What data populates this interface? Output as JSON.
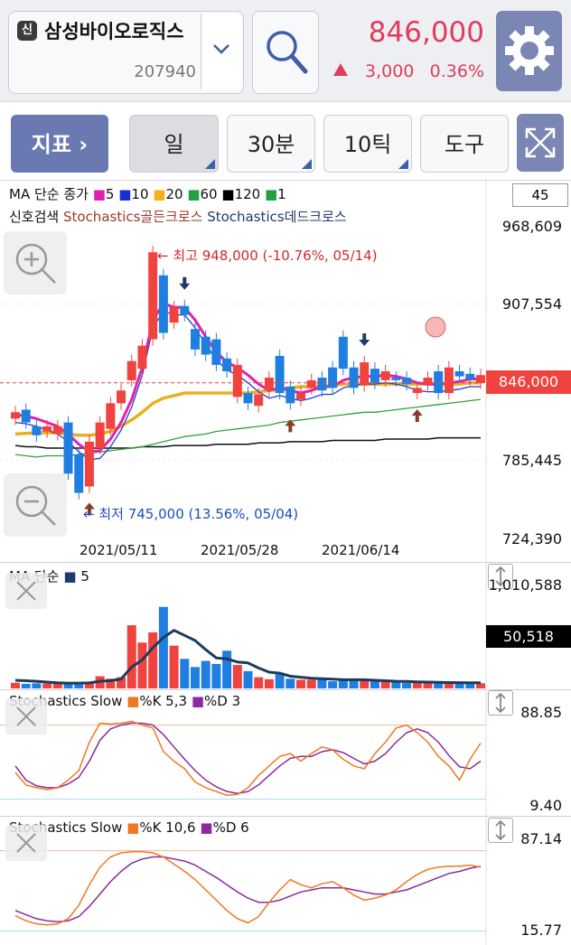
{
  "header": {
    "badge": "신",
    "stock_name": "삼성바이오로직스",
    "stock_code": "207940",
    "price": "846,000",
    "change": "3,000",
    "change_pct": "0.36%",
    "up_color": "#e03c5c"
  },
  "toolbar": {
    "indicator_label": "지표 ›",
    "period_day": "일",
    "period_30min": "30분",
    "period_10tick": "10틱",
    "tools": "도구"
  },
  "main_chart": {
    "ma_title": "MA 단순 종가",
    "ma_legend": [
      {
        "label": "5",
        "color": "#e020b0"
      },
      {
        "label": "10",
        "color": "#1a2fd0"
      },
      {
        "label": "20",
        "color": "#f0b418"
      },
      {
        "label": "60",
        "color": "#20a040"
      },
      {
        "label": "120",
        "color": "#000000"
      },
      {
        "label": "1",
        "color": "#20a040"
      }
    ],
    "signal_label": "신호검색",
    "signal_golden": "Stochastics골든크로스",
    "signal_dead": "Stochastics데드크로스",
    "period_box": "45",
    "y_labels": [
      "968,609",
      "907,554",
      "785,445",
      "724,390"
    ],
    "x_labels": [
      "2021/05/11",
      "2021/05/28",
      "2021/06/14"
    ],
    "current_price_tag": "846,000",
    "high_note": "← 최고 948,000 (-10.76%, 05/14)",
    "low_note": "← 최저 745,000 (13.56%, 05/04)"
  },
  "volume": {
    "title": "MA 단순",
    "ma_period": "5",
    "y_top": "1,010,588",
    "last_tag": "50,518"
  },
  "stoch1": {
    "title": "Stochastics Slow",
    "k": "%K 5,3",
    "d": "%D 3",
    "y_top": "88.85",
    "y_bottom": "9.40"
  },
  "stoch2": {
    "title": "Stochastics Slow",
    "k": "%K 10,6",
    "d": "%D 6",
    "y_top": "87.14",
    "y_bottom": "15.77"
  },
  "chart_data": {
    "type": "candlestick",
    "y_range": [
      724390,
      968609
    ],
    "high": 948000,
    "low": 745000,
    "last_close": 846000,
    "candles": [
      {
        "o": 823000,
        "c": 818000,
        "dir": "up"
      },
      {
        "o": 825000,
        "c": 815000,
        "dir": "down"
      },
      {
        "o": 812000,
        "c": 805000,
        "dir": "down"
      },
      {
        "o": 808000,
        "c": 812000,
        "dir": "up"
      },
      {
        "o": 806000,
        "c": 812000,
        "dir": "up"
      },
      {
        "o": 815000,
        "c": 775000,
        "dir": "down"
      },
      {
        "o": 790000,
        "c": 760000,
        "dir": "down"
      },
      {
        "o": 765000,
        "c": 800000,
        "dir": "up"
      },
      {
        "o": 795000,
        "c": 815000,
        "dir": "up"
      },
      {
        "o": 810000,
        "c": 830000,
        "dir": "up"
      },
      {
        "o": 830000,
        "c": 840000,
        "dir": "up"
      },
      {
        "o": 848000,
        "c": 863000,
        "dir": "up"
      },
      {
        "o": 857000,
        "c": 875000,
        "dir": "up"
      },
      {
        "o": 880000,
        "c": 948000,
        "dir": "up"
      },
      {
        "o": 930000,
        "c": 885000,
        "dir": "down"
      },
      {
        "o": 893000,
        "c": 905000,
        "dir": "up"
      },
      {
        "o": 906000,
        "c": 899000,
        "dir": "down"
      },
      {
        "o": 888000,
        "c": 872000,
        "dir": "down"
      },
      {
        "o": 882000,
        "c": 868000,
        "dir": "down"
      },
      {
        "o": 880000,
        "c": 860000,
        "dir": "down"
      },
      {
        "o": 865000,
        "c": 855000,
        "dir": "down"
      },
      {
        "o": 835000,
        "c": 860000,
        "dir": "up"
      },
      {
        "o": 838000,
        "c": 830000,
        "dir": "down"
      },
      {
        "o": 828000,
        "c": 837000,
        "dir": "up"
      },
      {
        "o": 840000,
        "c": 850000,
        "dir": "up"
      },
      {
        "o": 867000,
        "c": 838000,
        "dir": "down"
      },
      {
        "o": 843000,
        "c": 830000,
        "dir": "down"
      },
      {
        "o": 833000,
        "c": 838000,
        "dir": "up"
      },
      {
        "o": 842000,
        "c": 848000,
        "dir": "up"
      },
      {
        "o": 850000,
        "c": 840000,
        "dir": "down"
      },
      {
        "o": 858000,
        "c": 842000,
        "dir": "down"
      },
      {
        "o": 882000,
        "c": 857000,
        "dir": "down"
      },
      {
        "o": 858000,
        "c": 842000,
        "dir": "down"
      },
      {
        "o": 844000,
        "c": 862000,
        "dir": "up"
      },
      {
        "o": 857000,
        "c": 846000,
        "dir": "down"
      },
      {
        "o": 848000,
        "c": 855000,
        "dir": "up"
      },
      {
        "o": 850000,
        "c": 848000,
        "dir": "down"
      },
      {
        "o": 850000,
        "c": 845000,
        "dir": "down"
      },
      {
        "o": 838000,
        "c": 842000,
        "dir": "up"
      },
      {
        "o": 845000,
        "c": 850000,
        "dir": "up"
      },
      {
        "o": 855000,
        "c": 838000,
        "dir": "down"
      },
      {
        "o": 838000,
        "c": 858000,
        "dir": "up"
      },
      {
        "o": 855000,
        "c": 851000,
        "dir": "down"
      },
      {
        "o": 853000,
        "c": 849000,
        "dir": "down"
      },
      {
        "o": 852000,
        "c": 846000,
        "dir": "up"
      }
    ],
    "ma5": [
      821000,
      820000,
      818000,
      815000,
      812000,
      806000,
      798000,
      792000,
      793000,
      802000,
      815000,
      833000,
      858000,
      895000,
      908000,
      905000,
      905000,
      895000,
      882000,
      870000,
      862000,
      858000,
      852000,
      845000,
      840000,
      842000,
      840000,
      838000,
      840000,
      843000,
      843000,
      848000,
      850000,
      851000,
      851000,
      852000,
      851000,
      849000,
      846000,
      845000,
      845000,
      846000,
      847000,
      849000,
      849000
    ],
    "ma20": [
      806000,
      806500,
      807000,
      807000,
      807000,
      806000,
      805000,
      805000,
      806000,
      808000,
      812000,
      817000,
      823000,
      830000,
      834000,
      836000,
      838000,
      838000,
      838000,
      838000,
      838000,
      838000,
      838000,
      839000,
      840000,
      841000,
      842000,
      843000,
      843000,
      843000,
      844000,
      845000,
      845000,
      845000,
      845000,
      845000,
      845000,
      845000,
      845000,
      845000,
      845000,
      845000,
      845000,
      846000,
      846000
    ],
    "ma60": [
      790000,
      789000,
      788000,
      789000,
      789000,
      789000,
      790000,
      791000,
      792000,
      793000,
      794000,
      795000,
      796000,
      798000,
      800000,
      802000,
      804000,
      805000,
      806000,
      808000,
      809000,
      810000,
      811000,
      812000,
      813000,
      815000,
      816000,
      817000,
      818000,
      819000,
      820000,
      821000,
      822000,
      823000,
      823000,
      824000,
      825000,
      826000,
      827000,
      828000,
      829000,
      830000,
      831000,
      832000,
      833000
    ],
    "ma120": [
      797000,
      796000,
      796000,
      795000,
      795000,
      795000,
      795000,
      795000,
      795000,
      795000,
      795000,
      795000,
      796000,
      796000,
      796000,
      797000,
      797000,
      797000,
      797000,
      798000,
      798000,
      798000,
      798000,
      799000,
      799000,
      799000,
      800000,
      800000,
      800000,
      800000,
      801000,
      801000,
      801000,
      801000,
      801000,
      802000,
      802000,
      802000,
      802000,
      802000,
      803000,
      803000,
      803000,
      803000,
      803000
    ],
    "volume": [
      55000,
      45000,
      50000,
      48000,
      52000,
      47000,
      50000,
      58000,
      120000,
      95000,
      110000,
      620000,
      450000,
      550000,
      800000,
      420000,
      290000,
      210000,
      270000,
      240000,
      370000,
      230000,
      170000,
      110000,
      90000,
      140000,
      95000,
      85000,
      85000,
      100000,
      70000,
      90000,
      95000,
      85000,
      80000,
      75000,
      60000,
      55000,
      60000,
      75000,
      55000,
      60000,
      65000,
      60000,
      50518
    ],
    "volume_ma5": [
      80000,
      75000,
      70000,
      62000,
      56000,
      52000,
      52000,
      54000,
      70000,
      76000,
      92000,
      210000,
      280000,
      400000,
      500000,
      570000,
      520000,
      470000,
      380000,
      300000,
      290000,
      260000,
      250000,
      200000,
      160000,
      150000,
      120000,
      110000,
      100000,
      95000,
      90000,
      85000,
      85000,
      85000,
      80000,
      75000,
      70000,
      68000,
      65000,
      62000,
      60000,
      58000,
      57000,
      56000,
      55000
    ],
    "volume_range": [
      0,
      1010588
    ],
    "stoch1_k": [
      38,
      25,
      22,
      20,
      22,
      30,
      40,
      70,
      90,
      89,
      90,
      92,
      88,
      85,
      60,
      50,
      42,
      28,
      22,
      18,
      14,
      15,
      22,
      35,
      45,
      55,
      58,
      50,
      58,
      65,
      62,
      52,
      45,
      42,
      58,
      70,
      85,
      88,
      80,
      70,
      55,
      45,
      30,
      52,
      69
    ],
    "stoch1_d": [
      45,
      30,
      24,
      22,
      22,
      26,
      33,
      50,
      72,
      84,
      88,
      90,
      90,
      88,
      78,
      65,
      52,
      40,
      30,
      23,
      18,
      16,
      18,
      25,
      35,
      45,
      53,
      55,
      55,
      60,
      62,
      59,
      53,
      47,
      50,
      58,
      70,
      80,
      84,
      80,
      70,
      56,
      44,
      42,
      50
    ],
    "stoch2_k": [
      25,
      20,
      17,
      16,
      17,
      22,
      35,
      55,
      72,
      82,
      86,
      87,
      87,
      86,
      82,
      75,
      68,
      60,
      50,
      40,
      30,
      22,
      18,
      24,
      38,
      50,
      60,
      55,
      52,
      56,
      58,
      52,
      45,
      40,
      42,
      45,
      50,
      58,
      65,
      70,
      72,
      73,
      73,
      74,
      72
    ],
    "stoch2_d": [
      30,
      26,
      22,
      20,
      19,
      20,
      24,
      34,
      46,
      58,
      68,
      76,
      80,
      82,
      82,
      80,
      78,
      74,
      68,
      62,
      55,
      48,
      42,
      38,
      38,
      40,
      44,
      48,
      50,
      52,
      52,
      52,
      50,
      48,
      46,
      46,
      48,
      50,
      54,
      58,
      62,
      66,
      68,
      71,
      73
    ],
    "signals": [
      {
        "idx": 7,
        "type": "golden"
      },
      {
        "idx": 16,
        "type": "dead"
      },
      {
        "idx": 26,
        "type": "golden"
      },
      {
        "idx": 33,
        "type": "dead"
      },
      {
        "idx": 38,
        "type": "golden"
      }
    ]
  }
}
